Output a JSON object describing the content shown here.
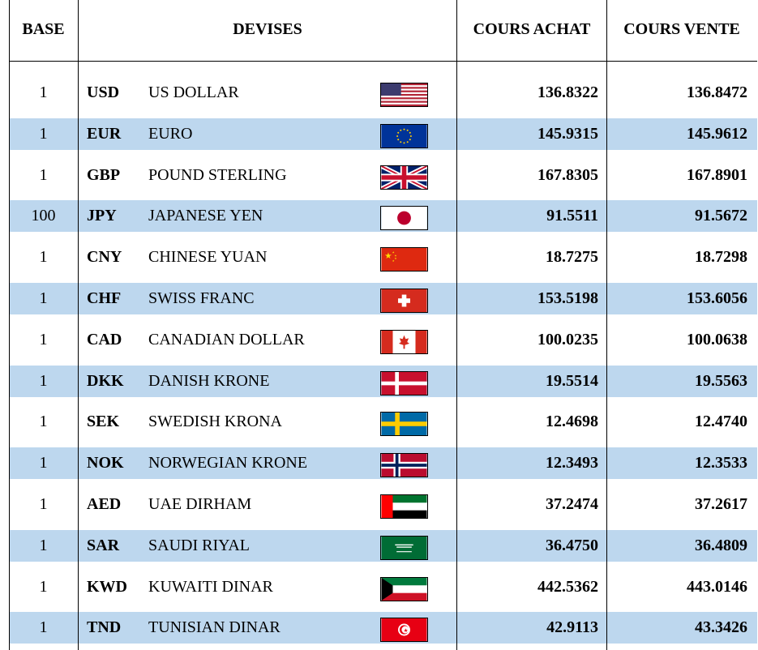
{
  "headers": {
    "base": "BASE",
    "devises": "DEVISES",
    "cours_achat": "COURS ACHAT",
    "cours_vente": "COURS VENTE"
  },
  "rows": [
    {
      "base": "1",
      "code": "USD",
      "name": "US DOLLAR",
      "flag": "us-flag",
      "achat": "136.8322",
      "vente": "136.8472"
    },
    {
      "base": "1",
      "code": "EUR",
      "name": "EURO",
      "flag": "eu-flag",
      "achat": "145.9315",
      "vente": "145.9612"
    },
    {
      "base": "1",
      "code": "GBP",
      "name": "POUND STERLING",
      "flag": "uk-flag",
      "achat": "167.8305",
      "vente": "167.8901"
    },
    {
      "base": "100",
      "code": "JPY",
      "name": "JAPANESE YEN",
      "flag": "japan-flag",
      "achat": "91.5511",
      "vente": "91.5672"
    },
    {
      "base": "1",
      "code": "CNY",
      "name": "CHINESE YUAN",
      "flag": "china-flag",
      "achat": "18.7275",
      "vente": "18.7298"
    },
    {
      "base": "1",
      "code": "CHF",
      "name": "SWISS FRANC",
      "flag": "swiss-flag",
      "achat": "153.5198",
      "vente": "153.6056"
    },
    {
      "base": "1",
      "code": "CAD",
      "name": "CANADIAN DOLLAR",
      "flag": "canada-flag",
      "achat": "100.0235",
      "vente": "100.0638"
    },
    {
      "base": "1",
      "code": "DKK",
      "name": "DANISH KRONE",
      "flag": "denmark-flag",
      "achat": "19.5514",
      "vente": "19.5563"
    },
    {
      "base": "1",
      "code": "SEK",
      "name": "SWEDISH KRONA",
      "flag": "sweden-flag",
      "achat": "12.4698",
      "vente": "12.4740"
    },
    {
      "base": "1",
      "code": "NOK",
      "name": "NORWEGIAN KRONE",
      "flag": "norway-flag",
      "achat": "12.3493",
      "vente": "12.3533"
    },
    {
      "base": "1",
      "code": "AED",
      "name": "UAE DIRHAM",
      "flag": "uae-flag",
      "achat": "37.2474",
      "vente": "37.2617"
    },
    {
      "base": "1",
      "code": "SAR",
      "name": "SAUDI RIYAL",
      "flag": "saudi-flag",
      "achat": "36.4750",
      "vente": "36.4809"
    },
    {
      "base": "1",
      "code": "KWD",
      "name": "KUWAITI DINAR",
      "flag": "kuwait-flag",
      "achat": "442.5362",
      "vente": "443.0146"
    },
    {
      "base": "1",
      "code": "TND",
      "name": "TUNISIAN DINAR",
      "flag": "tunisia-flag",
      "achat": "42.9113",
      "vente": "43.3426"
    }
  ],
  "colors": {
    "alt_row": "#bdd7ee",
    "rule": "#000000"
  }
}
